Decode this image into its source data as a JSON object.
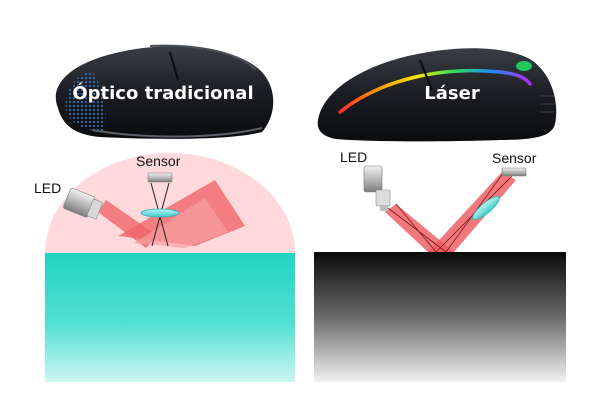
{
  "panels": {
    "optical": {
      "title": "Óptico tradicional",
      "led_label": "LED",
      "sensor_label": "Sensor",
      "glow_color": "#ffd6d8",
      "beam_color": "#f0656a",
      "surface_color": "#1fd3c0",
      "mouse_accent_color": "#2a7fd4"
    },
    "laser": {
      "title": "Láser",
      "led_label": "LED",
      "sensor_label": "Sensor",
      "beam_color": "#ee5a60",
      "surface_color": "#101010",
      "mouse_accent_color": "#22c55e"
    }
  }
}
